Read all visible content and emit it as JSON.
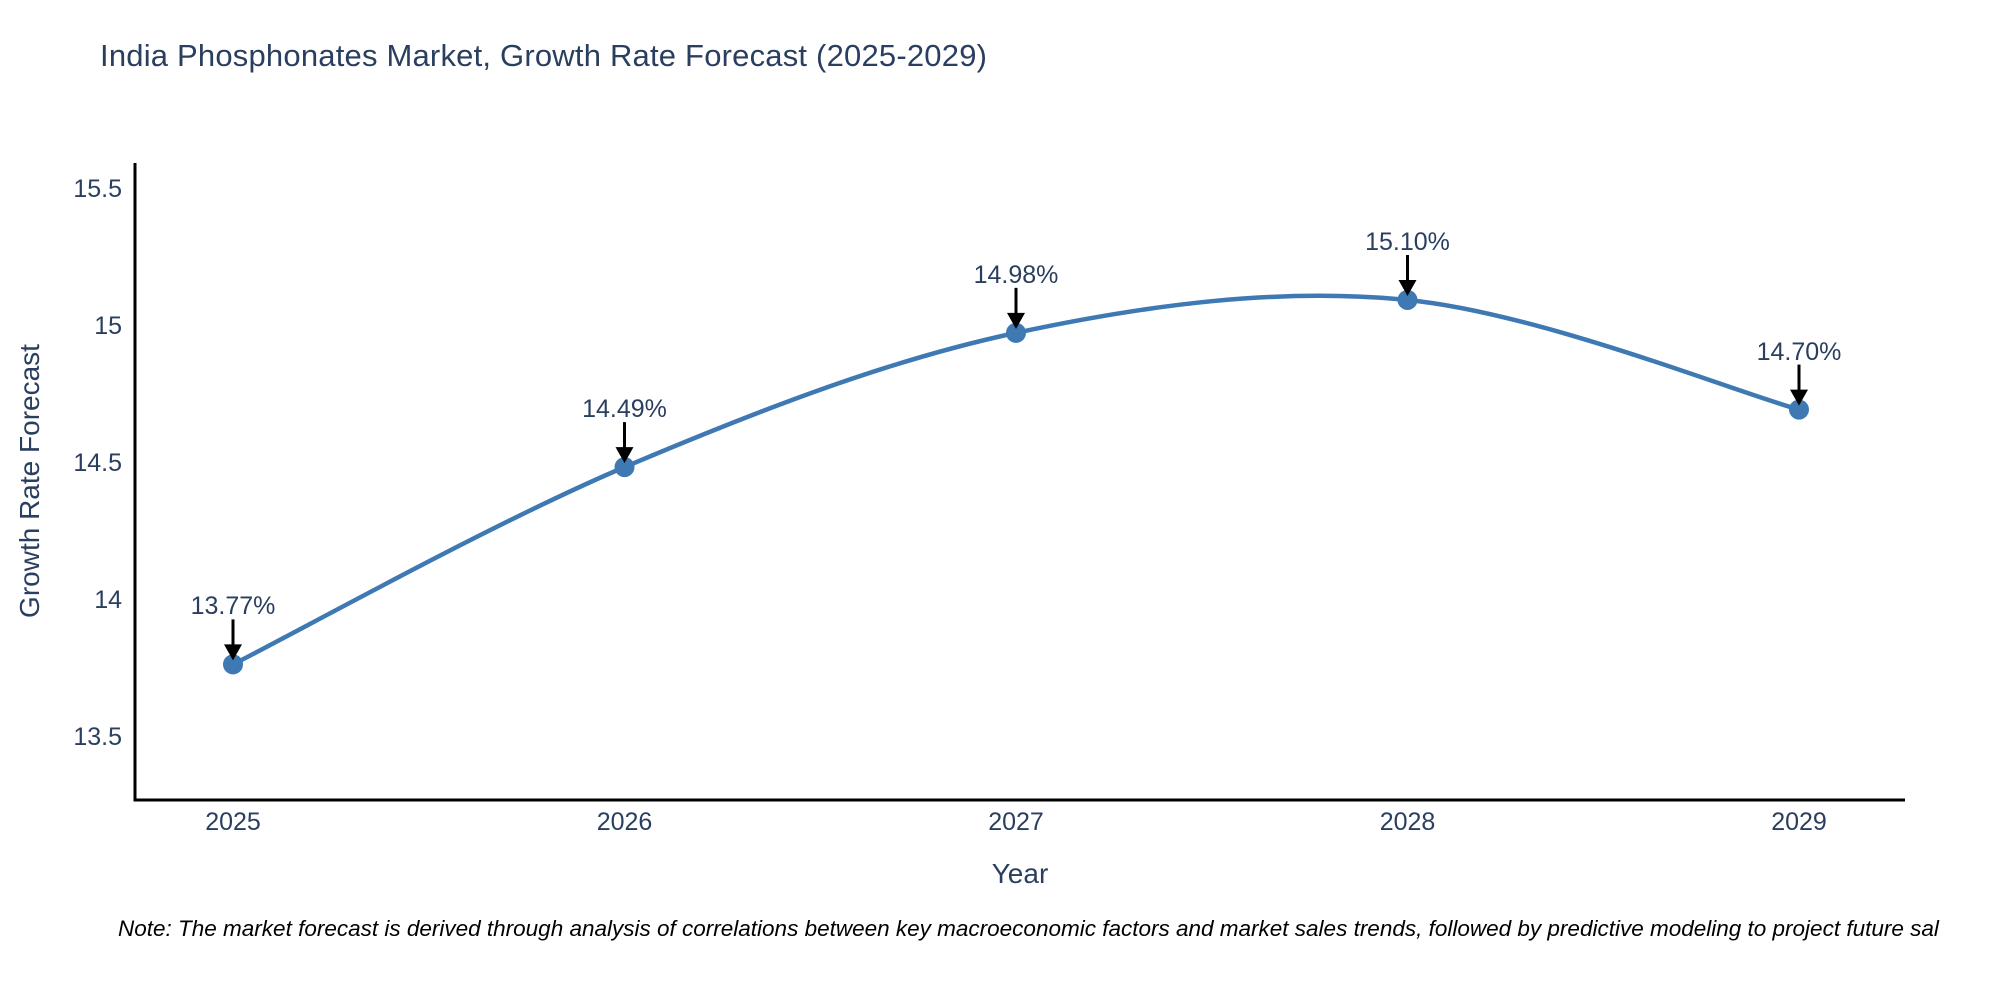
{
  "title": "India Phosphonates Market, Growth Rate Forecast (2025-2029)",
  "note": "Note: The market forecast is derived through analysis of correlations between key macroeconomic factors and market sales trends, followed by predictive modeling to project future sal",
  "chart_data": {
    "type": "line",
    "title": "India Phosphonates Market, Growth Rate Forecast (2025-2029)",
    "x": [
      2025,
      2026,
      2027,
      2028,
      2029
    ],
    "y": [
      13.77,
      14.49,
      14.98,
      15.1,
      14.7
    ],
    "point_labels": [
      "13.77%",
      "14.49%",
      "14.98%",
      "15.10%",
      "14.70%"
    ],
    "xtick_labels": [
      "2025",
      "2026",
      "2027",
      "2028",
      "2029"
    ],
    "ytick_values": [
      13.5,
      14,
      14.5,
      15,
      15.5
    ],
    "ytick_labels": [
      "13.5",
      "14",
      "14.5",
      "15",
      "15.5"
    ],
    "xlabel": "Year",
    "ylabel": "Growth Rate Forecast",
    "ylim": [
      13.275,
      15.6
    ],
    "grid": false,
    "legend": "none",
    "line_shape": "spline",
    "annotation_arrows": true,
    "colors": {
      "line": "#3e79b4",
      "marker": "#3e79b4",
      "axis": "#000000",
      "arrow": "#000000",
      "chart_text": "#2a3f5f",
      "note_text": "#000000",
      "background": "#ffffff"
    }
  }
}
